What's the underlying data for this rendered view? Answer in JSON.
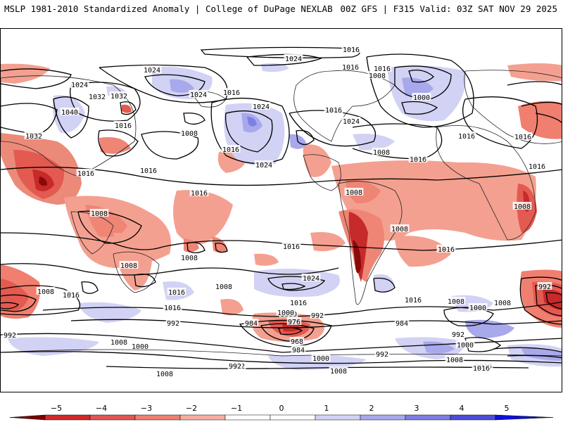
{
  "header": {
    "title_left": "MSLP 1981-2010 Standardized Anomaly | College of DuPage NEXLAB",
    "title_right": "00Z GFS | F315 Valid: 03Z SAT NOV 29 2025"
  },
  "map": {
    "contour_labels": [
      "1016",
      "1024",
      "1016",
      "1008",
      "1024",
      "1032",
      "1016",
      "1024",
      "1040",
      "1032",
      "1016",
      "1008",
      "1016",
      "1032",
      "1016",
      "1024",
      "1016",
      "1000",
      "1024",
      "1008",
      "1016",
      "1016",
      "1024",
      "1016",
      "1016",
      "1024",
      "1016",
      "1016",
      "1008",
      "1016",
      "1016",
      "1008",
      "1008",
      "1008",
      "1008",
      "1008",
      "1016",
      "1016",
      "1008",
      "1016",
      "1016",
      "1008",
      "1024",
      "1016",
      "1016",
      "1000",
      "992",
      "984",
      "976",
      "968",
      "984",
      "984",
      "992",
      "1000",
      "1008",
      "992",
      "1008",
      "992",
      "1000",
      "1008",
      "1016",
      "992",
      "1000",
      "992",
      "1008",
      "1000",
      "1008",
      "992",
      "1000",
      "1008",
      "1016",
      "992"
    ]
  },
  "colorbar": {
    "ticks": [
      "−5",
      "−4",
      "−3",
      "−2",
      "−1",
      "0",
      "1",
      "2",
      "3",
      "4",
      "5"
    ],
    "colors": [
      "#7a0000",
      "#d42828",
      "#e45454",
      "#f07f70",
      "#f7ada0",
      "#ffffff",
      "#ffffff",
      "#d2d2f4",
      "#a8a8ec",
      "#7e7ee4",
      "#4c4cdc",
      "#1010d8"
    ]
  }
}
